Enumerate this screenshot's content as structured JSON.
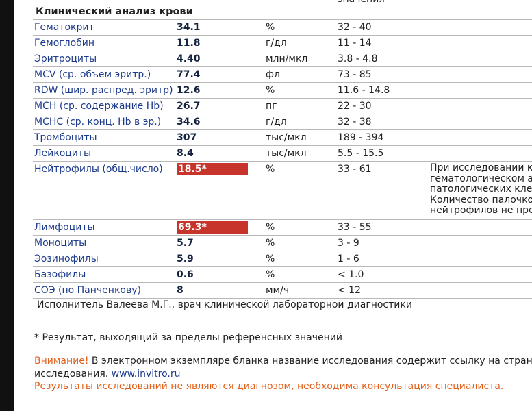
{
  "header": {
    "top_cut": "значения",
    "title": "Клинический анализ крови"
  },
  "rows": [
    [
      "Гематокрит",
      "34.1",
      "%",
      "32 - 40"
    ],
    [
      "Гемоглобин",
      "11.8",
      "г/дл",
      "11 - 14"
    ],
    [
      "Эритроциты",
      "4.40",
      "млн/мкл",
      "3.8 - 4.8"
    ],
    [
      "MCV (ср. объем эритр.)",
      "77.4",
      "фл",
      "73 - 85"
    ],
    [
      "RDW (шир. распред. эритр)",
      "12.6",
      "%",
      "11.6 - 14.8"
    ],
    [
      "MCH (ср. содержание Hb)",
      "26.7",
      "пг",
      "22 - 30"
    ],
    [
      "MCHC (ср. конц. Hb в эр.)",
      "34.6",
      "г/дл",
      "32 - 38"
    ],
    [
      "Тромбоциты",
      "307",
      "тыс/мкл",
      "189 - 394"
    ],
    [
      "Лейкоциты",
      "8.4",
      "тыс/мкл",
      "5.5 - 15.5"
    ],
    [
      "Нейтрофилы (общ.число)",
      "18.5*",
      "%",
      "33 - 61"
    ],
    [
      "Лимфоциты",
      "69.3*",
      "%",
      "33 - 55"
    ],
    [
      "Моноциты",
      "5.7",
      "%",
      "3 - 9"
    ],
    [
      "Эозинофилы",
      "5.9",
      "%",
      "1 - 6"
    ],
    [
      "Базофилы",
      "0.6",
      "%",
      "< 1.0"
    ],
    [
      "СОЭ (по Панченкову)",
      "8",
      "мм/ч",
      "< 12"
    ]
  ],
  "flagged_rows": [
    9,
    10
  ],
  "comment": {
    "row": 9,
    "lines": [
      "При исследовании кр",
      "гематологическом ан",
      "патологических клет",
      "Количество палочкоя",
      "нейтрофилов не пре"
    ]
  },
  "performer": "Исполнитель Валеева  М.Г., врач клинической лабораторной диагностики",
  "footnote": "* Результат, выходящий за пределы референсных значений",
  "notice": {
    "label": "Внимание!",
    "text": " В электронном экземпляре бланка название исследования содержит ссылку на страницу с",
    "line2": "исследования. ",
    "url": "www.invitro.ru",
    "warning": "Результаты исследований не являются диагнозом, необходима консультация специалиста."
  }
}
